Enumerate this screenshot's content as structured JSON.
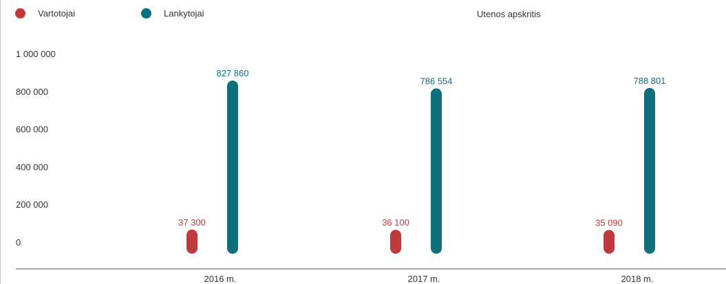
{
  "chart_data": {
    "type": "bar",
    "title": "Utenos apskritis",
    "xlabel": "",
    "ylabel": "",
    "categories": [
      "2016 m.",
      "2017 m.",
      "2018 m."
    ],
    "series": [
      {
        "name": "Vartotojai",
        "color": "#c0393b",
        "values": [
          37300,
          36100,
          35090
        ],
        "value_labels": [
          "37 300",
          "36 100",
          "35 090"
        ]
      },
      {
        "name": "Lankytojai",
        "color": "#0e6f7d",
        "values": [
          827860,
          786554,
          788801
        ],
        "value_labels": [
          "827 860",
          "786 554",
          "788 801"
        ]
      }
    ],
    "y_ticks": [
      0,
      200000,
      400000,
      600000,
      800000,
      1000000
    ],
    "y_tick_labels": [
      "0",
      "200 000",
      "400 000",
      "600 000",
      "800 000",
      "1 000 000"
    ],
    "ylim": [
      0,
      1000000
    ],
    "grid": false,
    "legend_position": "top-left"
  }
}
